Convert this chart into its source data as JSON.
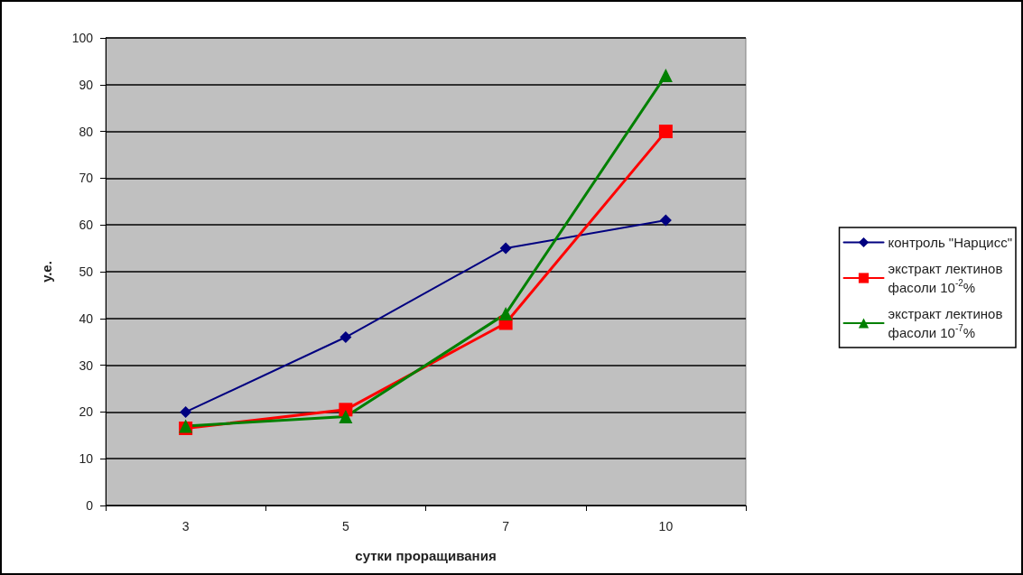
{
  "chart_data": {
    "type": "line",
    "xlabel": "сутки проращивания",
    "ylabel": "у.е.",
    "categories": [
      "3",
      "5",
      "7",
      "10"
    ],
    "series": [
      {
        "name": "контроль \"Нарцисс\"",
        "color": "#000080",
        "marker": "diamond",
        "values": [
          20,
          36,
          55,
          61
        ]
      },
      {
        "name": "экстракт лектинов фасоли 10$^{-2}$%",
        "color": "#ff0000",
        "marker": "square",
        "values": [
          16.5,
          20.5,
          39,
          80
        ]
      },
      {
        "name": "экстракт лектинов фасоли 10$^{-7}$%",
        "color": "#008000",
        "marker": "triangle",
        "values": [
          17,
          19,
          41,
          92
        ]
      }
    ],
    "ylim": [
      0,
      100
    ],
    "yticks": [
      0,
      10,
      20,
      30,
      40,
      50,
      60,
      70,
      80,
      90,
      100
    ],
    "grid": "y",
    "legend": "right"
  }
}
